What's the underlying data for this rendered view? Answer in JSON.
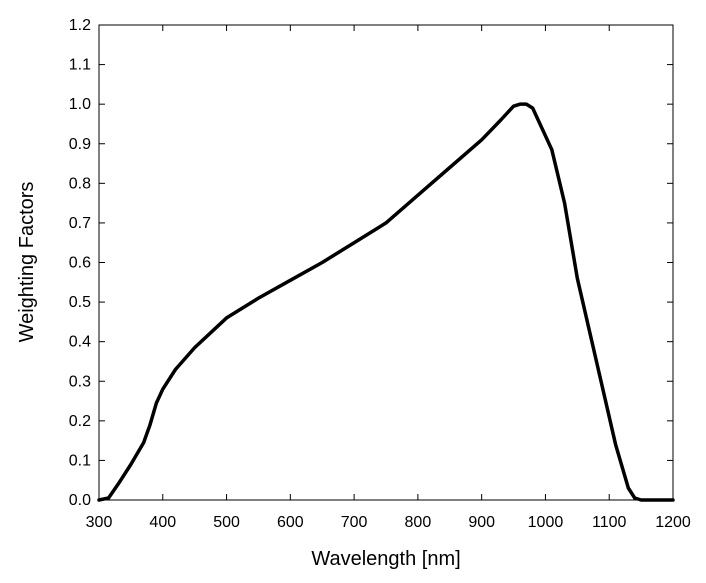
{
  "chart_data": {
    "type": "line",
    "title": "",
    "xlabel": "Wavelength [nm]",
    "ylabel": "Weighting Factors",
    "xlim": [
      300,
      1200
    ],
    "ylim": [
      0,
      1.2
    ],
    "x_ticks": [
      300,
      400,
      500,
      600,
      700,
      800,
      900,
      1000,
      1100,
      1200
    ],
    "y_ticks": [
      0.0,
      0.1,
      0.2,
      0.3,
      0.4,
      0.5,
      0.6,
      0.7,
      0.8,
      0.9,
      1.0,
      1.1,
      1.2
    ],
    "x_tick_labels": [
      "300",
      "400",
      "500",
      "600",
      "700",
      "800",
      "900",
      "1000",
      "1100",
      "1200"
    ],
    "y_tick_labels": [
      "0.0",
      "0.1",
      "0.2",
      "0.3",
      "0.4",
      "0.5",
      "0.6",
      "0.7",
      "0.8",
      "0.9",
      "1.0",
      "1.1",
      "1.2"
    ],
    "grid": false,
    "legend": "none",
    "line_color": "#000000",
    "series": [
      {
        "x": [
          300,
          315,
          330,
          350,
          370,
          380,
          390,
          400,
          420,
          450,
          480,
          500,
          550,
          600,
          650,
          700,
          750,
          800,
          850,
          900,
          930,
          950,
          960,
          970,
          980,
          1000,
          1010,
          1030,
          1050,
          1070,
          1090,
          1110,
          1130,
          1140,
          1150,
          1175,
          1200
        ],
        "y": [
          0.0,
          0.005,
          0.04,
          0.09,
          0.145,
          0.19,
          0.245,
          0.28,
          0.33,
          0.385,
          0.43,
          0.46,
          0.51,
          0.555,
          0.6,
          0.65,
          0.7,
          0.77,
          0.84,
          0.91,
          0.96,
          0.995,
          1.0,
          1.0,
          0.99,
          0.92,
          0.885,
          0.75,
          0.56,
          0.42,
          0.28,
          0.14,
          0.03,
          0.005,
          0.0,
          0.0,
          0.0
        ]
      }
    ]
  }
}
